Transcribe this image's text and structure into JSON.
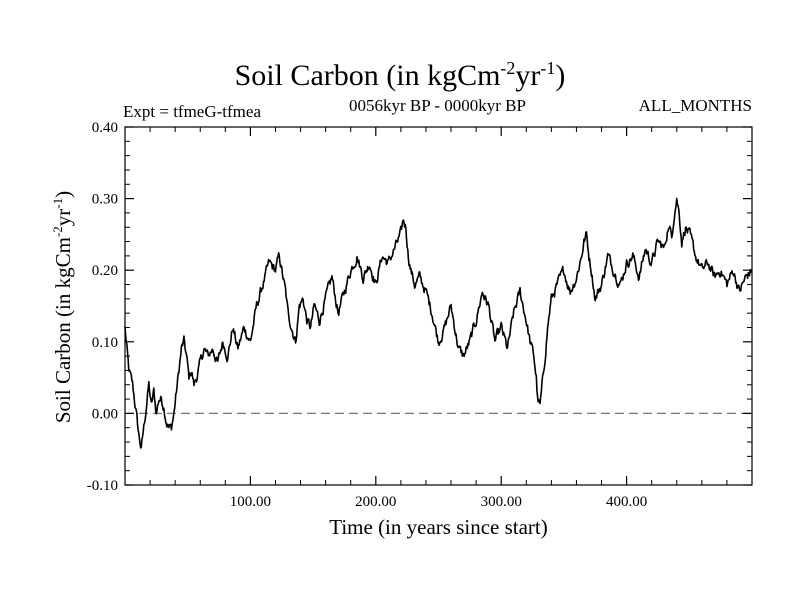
{
  "chart_data": {
    "type": "line",
    "title": {
      "main": "Soil Carbon (in kgCm",
      "exp1": "-2",
      "mid": "yr",
      "exp2": "-1",
      "end": ")"
    },
    "subtitle_left": "Expt = tfmeG-tfmea",
    "subtitle_center": "0056kyr BP - 0000kyr BP",
    "subtitle_right": "ALL_MONTHS",
    "xlabel": "Time (in years since start)",
    "ylabel": {
      "main": "Soil Carbon (in kgCm",
      "exp1": "-2",
      "mid": "yr",
      "exp2": "-1",
      "end": ")"
    },
    "xlim": [
      0,
      500
    ],
    "ylim": [
      -0.1,
      0.4
    ],
    "xticks": [
      100,
      200,
      300,
      400
    ],
    "xtick_labels": [
      "100.00",
      "200.00",
      "300.00",
      "400.00"
    ],
    "yticks": [
      -0.1,
      0.0,
      0.1,
      0.2,
      0.3,
      0.4
    ],
    "ytick_labels": [
      "-0.10",
      "0.00",
      "0.10",
      "0.20",
      "0.30",
      "0.40"
    ],
    "reference_line": {
      "y": 0.0,
      "style": "dashed",
      "color": "#777777"
    },
    "series": [
      {
        "name": "Soil Carbon",
        "color": "#000000",
        "x": [
          0,
          3,
          6,
          9,
          11,
          13,
          15,
          17,
          19,
          21,
          23,
          25,
          27,
          29,
          31,
          33,
          35,
          37,
          39,
          41,
          43,
          45,
          47,
          49,
          51,
          53,
          55,
          57,
          60,
          63,
          66,
          70,
          74,
          78,
          82,
          86,
          90,
          95,
          100,
          105,
          110,
          115,
          120,
          123,
          126,
          128,
          130,
          133,
          136,
          139,
          142,
          145,
          148,
          151,
          155,
          160,
          165,
          170,
          175,
          180,
          185,
          190,
          195,
          200,
          205,
          210,
          215,
          220,
          222,
          224,
          226,
          228,
          231,
          235,
          240,
          245,
          250,
          255,
          260,
          263,
          266,
          270,
          275,
          280,
          285,
          290,
          295,
          300,
          305,
          310,
          315,
          320,
          323,
          326,
          328,
          329,
          331,
          334,
          337,
          340,
          345,
          350,
          355,
          360,
          364,
          366,
          368,
          370,
          372,
          375,
          380,
          385,
          390,
          395,
          400,
          405,
          410,
          415,
          420,
          425,
          430,
          433,
          436,
          438,
          440,
          442,
          444,
          447,
          450,
          455,
          460,
          465,
          470,
          475,
          480,
          485,
          490,
          495,
          500
        ],
        "values": [
          0.12,
          0.06,
          0.04,
          0.0,
          -0.03,
          -0.05,
          -0.02,
          0.01,
          0.04,
          0.01,
          0.03,
          0.0,
          0.02,
          0.02,
          0.01,
          -0.01,
          -0.02,
          -0.02,
          0.0,
          0.03,
          0.06,
          0.09,
          0.1,
          0.08,
          0.05,
          0.06,
          0.04,
          0.05,
          0.07,
          0.09,
          0.08,
          0.09,
          0.07,
          0.1,
          0.08,
          0.12,
          0.09,
          0.12,
          0.1,
          0.15,
          0.18,
          0.21,
          0.2,
          0.22,
          0.19,
          0.17,
          0.14,
          0.12,
          0.1,
          0.15,
          0.16,
          0.13,
          0.12,
          0.15,
          0.13,
          0.16,
          0.19,
          0.14,
          0.17,
          0.2,
          0.22,
          0.19,
          0.21,
          0.18,
          0.22,
          0.21,
          0.23,
          0.25,
          0.27,
          0.26,
          0.22,
          0.2,
          0.18,
          0.19,
          0.17,
          0.14,
          0.1,
          0.12,
          0.15,
          0.12,
          0.09,
          0.08,
          0.1,
          0.13,
          0.17,
          0.15,
          0.1,
          0.12,
          0.09,
          0.14,
          0.17,
          0.13,
          0.1,
          0.08,
          0.05,
          0.02,
          0.01,
          0.06,
          0.12,
          0.16,
          0.18,
          0.2,
          0.17,
          0.19,
          0.22,
          0.24,
          0.25,
          0.22,
          0.2,
          0.16,
          0.18,
          0.22,
          0.2,
          0.18,
          0.21,
          0.22,
          0.19,
          0.23,
          0.21,
          0.24,
          0.23,
          0.26,
          0.25,
          0.28,
          0.3,
          0.28,
          0.24,
          0.26,
          0.25,
          0.22,
          0.2,
          0.21,
          0.19,
          0.2,
          0.18,
          0.2,
          0.17,
          0.19,
          0.2
        ]
      }
    ]
  }
}
